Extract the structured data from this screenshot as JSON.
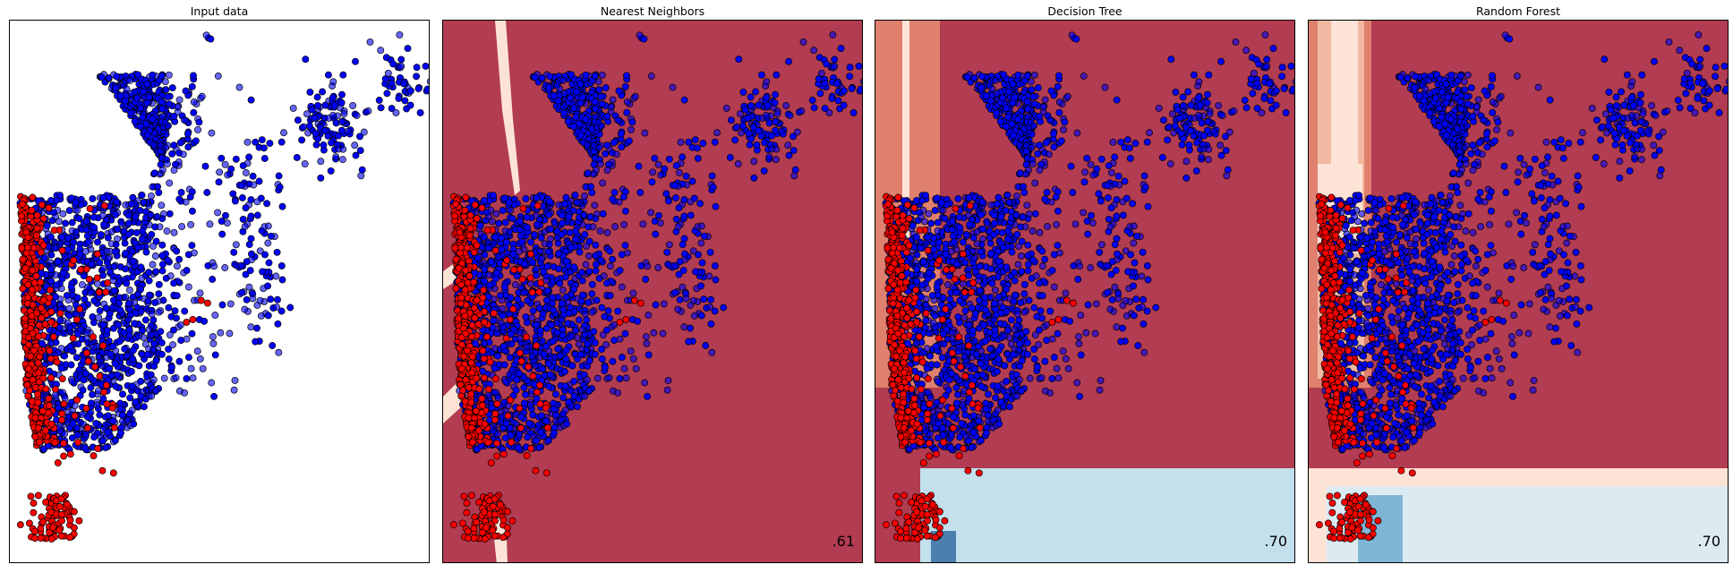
{
  "figure": {
    "colors": {
      "class0_point": "#ff0000",
      "class1_point": "#0000ff",
      "point_edge": "#000000",
      "bg_strong_red": "#b23c52",
      "bg_mid_red": "#e0806f",
      "bg_light_red": "#f2b9a2",
      "bg_pale_red": "#fde3d6",
      "bg_light_blue": "#c3e0ec",
      "bg_pale_blue": "#dceaf2",
      "bg_mid_blue": "#7fb6d6",
      "bg_dark_blue": "#4d7fae"
    }
  },
  "chart_data": [
    {
      "type": "scatter",
      "title": "Input data",
      "score": "",
      "xlim": [
        0,
        1
      ],
      "ylim": [
        0,
        1
      ],
      "grid": false,
      "series": [
        {
          "class": 1,
          "color": "#0000ff",
          "note_alpha": "training opaque, test translucent"
        },
        {
          "class": 0,
          "color": "#ff0000"
        }
      ],
      "highlights": [
        {
          "x": 0.455,
          "y": 0.485
        },
        {
          "x": 0.47,
          "y": 0.48
        },
        {
          "x": 0.42,
          "y": 0.445
        },
        {
          "x": 0.435,
          "y": 0.45
        }
      ]
    },
    {
      "type": "scatter",
      "title": "Nearest Neighbors",
      "score": ".61",
      "xlim": [
        0,
        1
      ],
      "ylim": [
        0,
        1
      ],
      "background": "decision surface"
    },
    {
      "type": "scatter",
      "title": "Decision Tree",
      "score": ".70",
      "xlim": [
        0,
        1
      ],
      "ylim": [
        0,
        1
      ],
      "background": "decision surface"
    },
    {
      "type": "scatter",
      "title": "Random Forest",
      "score": ".70",
      "xlim": [
        0,
        1
      ],
      "ylim": [
        0,
        1
      ],
      "background": "decision surface"
    }
  ]
}
